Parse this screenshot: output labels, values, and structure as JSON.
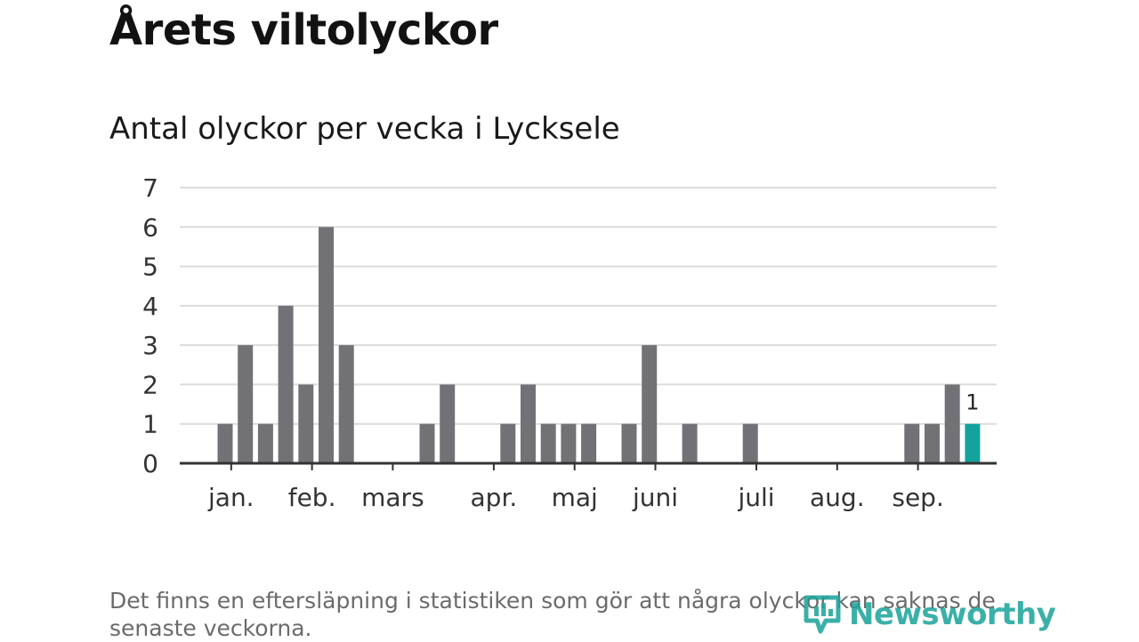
{
  "title": "Årets viltolyckor",
  "subtitle": "Antal olyckor per vecka i Lycksele",
  "note": "Det finns en eftersläpning i statistiken som gör att några olyckor kan saknas de senaste veckorna.",
  "brand": {
    "name": "Newsworthy",
    "icon": "newsworthy-logo-icon",
    "color": "#1aa39a"
  },
  "chart_data": {
    "type": "bar",
    "x": [
      1,
      2,
      3,
      4,
      5,
      6,
      7,
      8,
      9,
      10,
      11,
      12,
      13,
      14,
      15,
      16,
      17,
      18,
      19,
      20,
      21,
      22,
      23,
      24,
      25,
      26,
      27,
      28,
      29,
      30,
      31,
      32,
      33,
      34,
      35,
      36,
      37,
      38
    ],
    "values": [
      1,
      3,
      1,
      4,
      2,
      6,
      3,
      0,
      0,
      0,
      1,
      2,
      0,
      0,
      1,
      2,
      1,
      1,
      1,
      0,
      1,
      3,
      0,
      1,
      0,
      0,
      1,
      0,
      0,
      0,
      0,
      0,
      0,
      0,
      1,
      1,
      2,
      1
    ],
    "month_labels": [
      {
        "label": "jan.",
        "week": 1.3
      },
      {
        "label": "feb.",
        "week": 5.3
      },
      {
        "label": "mars",
        "week": 9.3
      },
      {
        "label": "apr.",
        "week": 14.3
      },
      {
        "label": "maj",
        "week": 18.3
      },
      {
        "label": "juni",
        "week": 22.3
      },
      {
        "label": "juli",
        "week": 27.3
      },
      {
        "label": "aug.",
        "week": 31.3
      },
      {
        "label": "sep.",
        "week": 35.3
      }
    ],
    "ylim": [
      0,
      7
    ],
    "yticks": [
      0,
      1,
      2,
      3,
      4,
      5,
      6,
      7
    ],
    "grid": true,
    "bar_color": "#727176",
    "highlight_color": "#13a39c",
    "highlight_index": 37,
    "highlight_label": "1"
  }
}
